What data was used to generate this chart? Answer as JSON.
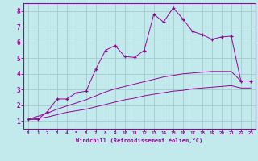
{
  "xlabel": "Windchill (Refroidissement éolien,°C)",
  "xlim": [
    -0.5,
    23.5
  ],
  "ylim": [
    0.5,
    8.5
  ],
  "xticks": [
    0,
    1,
    2,
    3,
    4,
    5,
    6,
    7,
    8,
    9,
    10,
    11,
    12,
    13,
    14,
    15,
    16,
    17,
    18,
    19,
    20,
    21,
    22,
    23
  ],
  "yticks": [
    1,
    2,
    3,
    4,
    5,
    6,
    7,
    8
  ],
  "background_color": "#c2eaed",
  "grid_color": "#a8c8cc",
  "line_color": "#990099",
  "series1_x": [
    0,
    1,
    2,
    3,
    4,
    5,
    6,
    7,
    8,
    9,
    10,
    11,
    12,
    13,
    14,
    15,
    16,
    17,
    18,
    19,
    20,
    21,
    22,
    23
  ],
  "series1_y": [
    1.1,
    1.1,
    1.6,
    2.4,
    2.4,
    2.8,
    2.9,
    4.3,
    5.5,
    5.8,
    5.1,
    5.05,
    5.5,
    7.8,
    7.3,
    8.2,
    7.5,
    6.7,
    6.5,
    6.2,
    6.35,
    6.4,
    3.55,
    3.55
  ],
  "series2_x": [
    0,
    2,
    3,
    4,
    5,
    6,
    7,
    8,
    9,
    10,
    11,
    12,
    13,
    14,
    15,
    16,
    17,
    18,
    19,
    20,
    21,
    22,
    23
  ],
  "series2_y": [
    1.1,
    1.5,
    1.75,
    1.95,
    2.15,
    2.35,
    2.6,
    2.85,
    3.05,
    3.2,
    3.35,
    3.5,
    3.65,
    3.8,
    3.9,
    4.0,
    4.05,
    4.1,
    4.15,
    4.15,
    4.15,
    3.55,
    3.55
  ],
  "series3_x": [
    0,
    1,
    2,
    3,
    4,
    5,
    6,
    7,
    8,
    9,
    10,
    11,
    12,
    13,
    14,
    15,
    16,
    17,
    18,
    19,
    20,
    21,
    22,
    23
  ],
  "series3_y": [
    1.1,
    1.15,
    1.25,
    1.4,
    1.55,
    1.65,
    1.75,
    1.9,
    2.05,
    2.2,
    2.35,
    2.45,
    2.6,
    2.7,
    2.8,
    2.9,
    2.95,
    3.05,
    3.1,
    3.15,
    3.2,
    3.25,
    3.1,
    3.1
  ]
}
